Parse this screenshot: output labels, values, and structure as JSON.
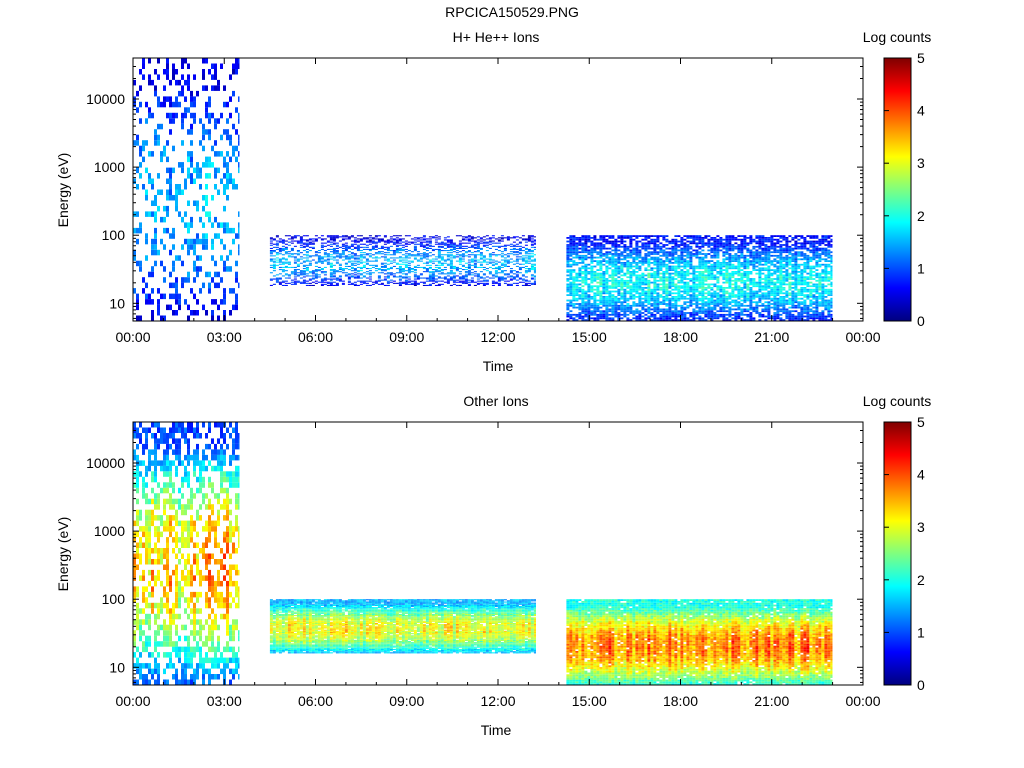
{
  "page": {
    "title": "RPCICA150529.PNG"
  },
  "colors": {
    "colormap": [
      "#00007f",
      "#0000ff",
      "#007fff",
      "#00ffff",
      "#7fff7f",
      "#ffff00",
      "#ff7f00",
      "#ff0000",
      "#7f0000"
    ],
    "axis": "#000000",
    "background": "#ffffff"
  },
  "chart_data": [
    {
      "type": "heatmap",
      "title": "H+ He++ Ions",
      "xlabel": "Time",
      "ylabel": "Energy (eV)",
      "y_scale": "log",
      "ylim": [
        5.5,
        40000
      ],
      "x_hours": [
        0,
        24
      ],
      "xtick_labels": [
        "00:00",
        "03:00",
        "06:00",
        "09:00",
        "12:00",
        "15:00",
        "18:00",
        "21:00",
        "00:00"
      ],
      "ytick_values": [
        10,
        100,
        1000,
        10000
      ],
      "ytick_labels": [
        "10",
        "100",
        "1000",
        "10000"
      ],
      "colorbar": {
        "label": "Log counts",
        "range": [
          0,
          5
        ],
        "tick_labels": [
          "0",
          "1",
          "2",
          "3",
          "4",
          "5"
        ]
      },
      "segments": [
        {
          "start": "00:00",
          "end": "03:30",
          "energy_range": [
            5.5,
            40000
          ],
          "level": [
            0.5,
            1.8
          ],
          "coverage": 0.3
        },
        {
          "start": "04:30",
          "end": "13:15",
          "energy_range": [
            18,
            100
          ],
          "level": [
            0.5,
            1.8
          ],
          "coverage": 0.45
        },
        {
          "start": "14:15",
          "end": "23:00",
          "energy_range": [
            5.5,
            100
          ],
          "level": [
            0.7,
            2.2
          ],
          "coverage": 0.75
        }
      ]
    },
    {
      "type": "heatmap",
      "title": "Other Ions",
      "xlabel": "Time",
      "ylabel": "Energy (eV)",
      "y_scale": "log",
      "ylim": [
        5.5,
        40000
      ],
      "x_hours": [
        0,
        24
      ],
      "xtick_labels": [
        "00:00",
        "03:00",
        "06:00",
        "09:00",
        "12:00",
        "15:00",
        "18:00",
        "21:00",
        "00:00"
      ],
      "ytick_values": [
        10,
        100,
        1000,
        10000
      ],
      "ytick_labels": [
        "10",
        "100",
        "1000",
        "10000"
      ],
      "colorbar": {
        "label": "Log counts",
        "range": [
          0,
          5
        ],
        "tick_labels": [
          "0",
          "1",
          "2",
          "3",
          "4",
          "5"
        ]
      },
      "segments": [
        {
          "start": "00:00",
          "end": "03:30",
          "energy_range": [
            5.5,
            40000
          ],
          "level": [
            1.0,
            4.0
          ],
          "coverage": 0.55
        },
        {
          "start": "04:30",
          "end": "13:15",
          "energy_range": [
            16,
            100
          ],
          "level": [
            1.5,
            3.5
          ],
          "coverage": 0.95
        },
        {
          "start": "14:15",
          "end": "23:00",
          "energy_range": [
            5.5,
            100
          ],
          "level": [
            2.0,
            4.2
          ],
          "coverage": 0.95
        }
      ]
    }
  ]
}
